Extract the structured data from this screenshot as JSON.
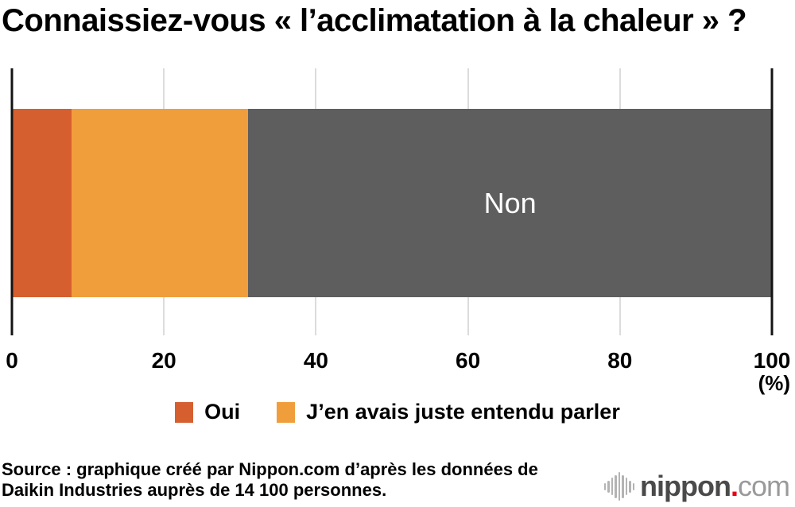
{
  "title": "Connaissiez-vous « l’acclimatation à la chaleur » ?",
  "chart_data": {
    "type": "bar",
    "stacked": true,
    "orientation": "horizontal",
    "title": "Connaissiez-vous « l’acclimatation à la chaleur » ?",
    "xlim": [
      0,
      100
    ],
    "x_ticks": [
      0,
      20,
      40,
      60,
      80,
      100
    ],
    "x_unit": "(%)",
    "grid": true,
    "legend_position": "bottom-center",
    "series": [
      {
        "name": "Oui",
        "value": 7.8,
        "color": "#d65f30",
        "in_legend": true,
        "label_in_bar": false
      },
      {
        "name": "J’en avais juste entendu parler",
        "value": 23.3,
        "color": "#f09e3b",
        "in_legend": true,
        "label_in_bar": false
      },
      {
        "name": "Non",
        "value": 68.9,
        "color": "#5e5e5e",
        "in_legend": false,
        "label_in_bar": true
      }
    ]
  },
  "footer": {
    "source_line1": "Source : graphique créé par Nippon.com d’après les données de",
    "source_line2": "Daikin Industries auprès de 14 100 personnes.",
    "logo": {
      "icon": "soundwave-icon",
      "text_bold": "nippon",
      "dot": ".",
      "text_light": "com",
      "dot_color": "#e60012"
    }
  }
}
